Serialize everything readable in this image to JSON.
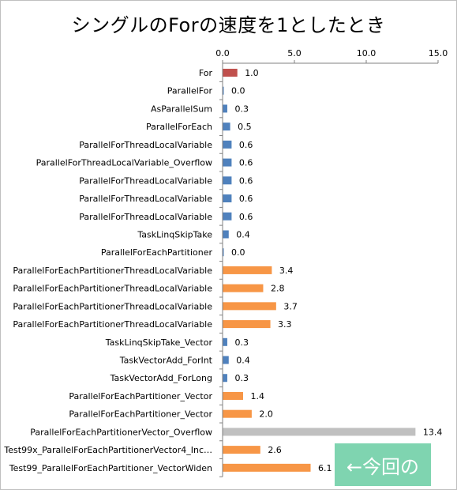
{
  "chart_data": {
    "type": "bar",
    "orientation": "horizontal",
    "title": "シングルのForの速度を1としたとき",
    "xlim": [
      0,
      15
    ],
    "x_ticks": [
      "0.0",
      "5.0",
      "10.0",
      "15.0"
    ],
    "x_tick_values": [
      0,
      5,
      10,
      15
    ],
    "axis_position": "top",
    "grid": false,
    "categories": [
      "For",
      "ParallelFor",
      "AsParallelSum",
      "ParallelForEach",
      "ParallelForThreadLocalVariable",
      "ParallelForThreadLocalVariable_Overflow",
      "ParallelForThreadLocalVariable",
      "ParallelForThreadLocalVariable",
      "ParallelForThreadLocalVariable",
      "TaskLinqSkipTake",
      "ParallelForEachPartitioner",
      "ParallelForEachPartitionerThreadLocalVariable",
      "ParallelForEachPartitionerThreadLocalVariable",
      "ParallelForEachPartitionerThreadLocalVariable",
      "ParallelForEachPartitionerThreadLocalVariable",
      "TaskLinqSkipTake_Vector",
      "TaskVectorAdd_ForInt",
      "TaskVectorAdd_ForLong",
      "ParallelForEachPartitioner_Vector",
      "ParallelForEachPartitioner_Vector",
      "ParallelForEachPartitionerVector_Overflow",
      "Test99x_ParallelForEachPartitionerVector4_Inc…",
      "Test99_ParallelForEachPartitioner_VectorWiden"
    ],
    "values": [
      1.0,
      0.05,
      0.3,
      0.5,
      0.6,
      0.6,
      0.6,
      0.6,
      0.6,
      0.4,
      0.05,
      3.4,
      2.8,
      3.7,
      3.3,
      0.3,
      0.4,
      0.3,
      1.4,
      2.0,
      13.4,
      2.6,
      6.1
    ],
    "value_labels": [
      "1.0",
      "0.0",
      "0.3",
      "0.5",
      "0.6",
      "0.6",
      "0.6",
      "0.6",
      "0.6",
      "0.4",
      "0.0",
      "3.4",
      "2.8",
      "3.7",
      "3.3",
      "0.3",
      "0.4",
      "0.3",
      "1.4",
      "2.0",
      "13.4",
      "2.6",
      "6.1"
    ],
    "bar_colors": [
      "#c0504d",
      "#4f81bd",
      "#4f81bd",
      "#4f81bd",
      "#4f81bd",
      "#4f81bd",
      "#4f81bd",
      "#4f81bd",
      "#4f81bd",
      "#4f81bd",
      "#4f81bd",
      "#f79646",
      "#f79646",
      "#f79646",
      "#f79646",
      "#4f81bd",
      "#4f81bd",
      "#4f81bd",
      "#f79646",
      "#f79646",
      "#c0c0c0",
      "#f79646",
      "#f79646"
    ]
  },
  "note": {
    "text": "←今回の",
    "color": "#7fd4b0"
  }
}
